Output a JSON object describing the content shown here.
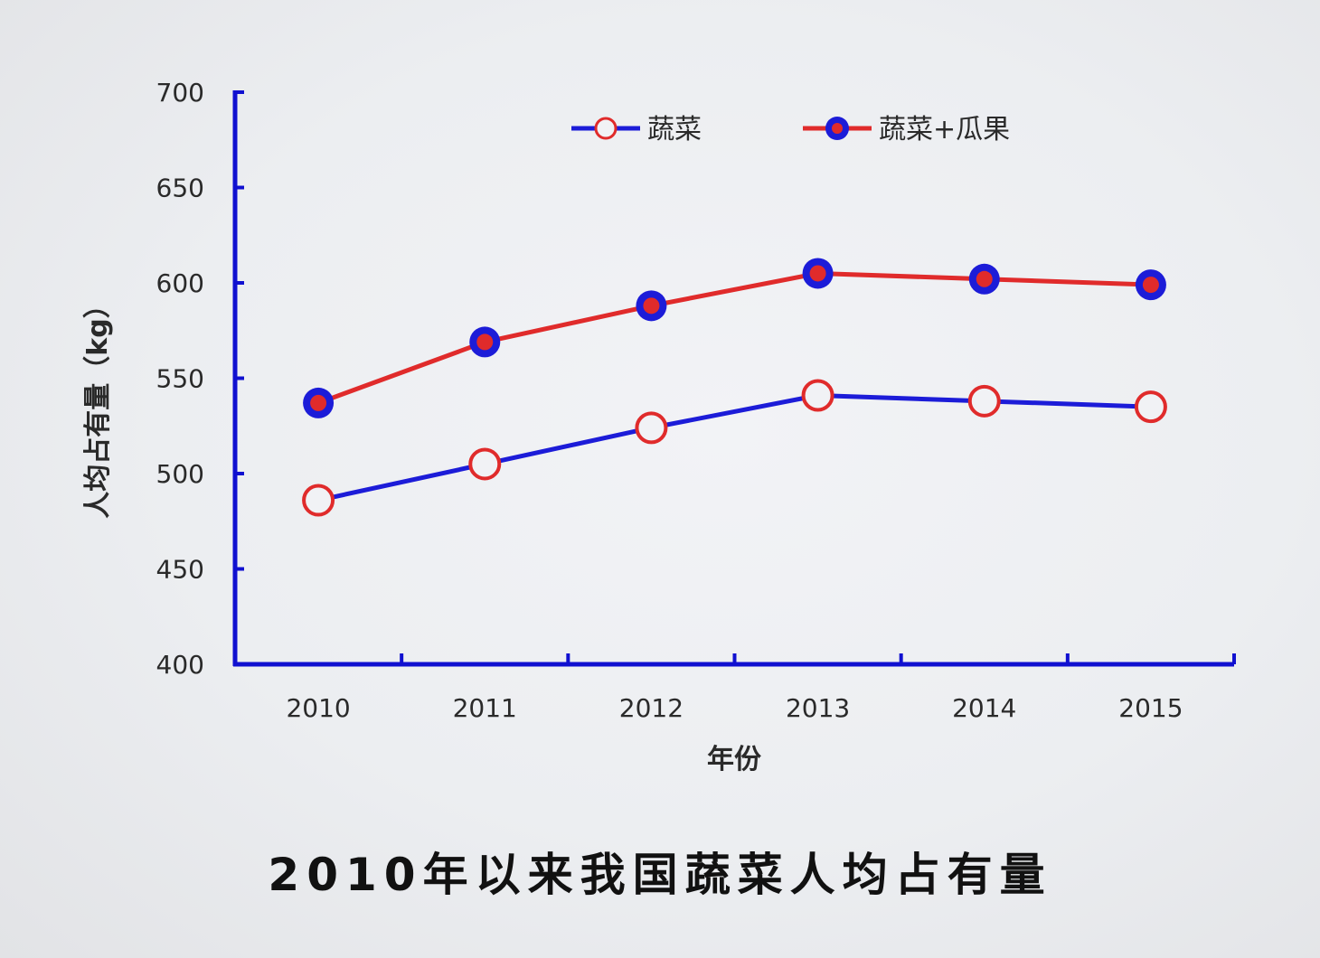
{
  "chart_data": {
    "type": "line",
    "title": "2010年以来我国蔬菜人均占有量",
    "xlabel": "年份",
    "ylabel": "人均占有量（kg）",
    "categories": [
      "2010",
      "2011",
      "2012",
      "2013",
      "2014",
      "2015"
    ],
    "yticks": [
      "400",
      "450",
      "500",
      "550",
      "600",
      "650",
      "700"
    ],
    "ylim": [
      400,
      700
    ],
    "grid": false,
    "legend_position": "top",
    "series": [
      {
        "name": "蔬菜",
        "values": [
          486,
          505,
          524,
          541,
          538,
          535
        ],
        "line_color": "#1c1cd8",
        "marker": "hollow-circle",
        "marker_color": "#e02b2b"
      },
      {
        "name": "蔬菜+瓜果",
        "values": [
          537,
          569,
          588,
          605,
          602,
          599
        ],
        "line_color": "#e02b2b",
        "marker": "filled-circle",
        "marker_color": "#1c1cd8",
        "marker_center_color": "#e02b2b"
      }
    ],
    "axis_color": "#1010d0"
  }
}
